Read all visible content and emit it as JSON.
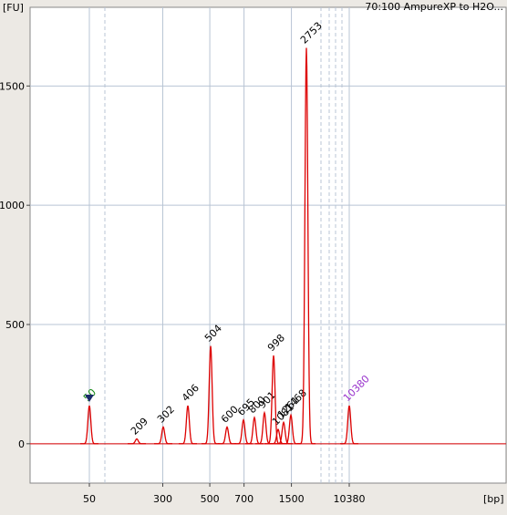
{
  "chart_data": {
    "type": "electropherogram",
    "title": "70:100 AmpureXP to H2O...",
    "y_label": "[FU]",
    "x_label": "[bp]",
    "x": [
      50,
      209,
      302,
      406,
      504,
      600,
      695,
      800,
      901,
      998,
      1081,
      1261,
      1468,
      2753,
      10380
    ],
    "values": [
      160,
      20,
      70,
      160,
      410,
      70,
      100,
      110,
      130,
      370,
      60,
      90,
      120,
      1660,
      160
    ],
    "label_colors": [
      "#118811",
      "#000000",
      "#000000",
      "#000000",
      "#000000",
      "#000000",
      "#000000",
      "#000000",
      "#000000",
      "#000000",
      "#000000",
      "#000000",
      "#000000",
      "#000000",
      "#9933cc"
    ],
    "color": "#dd0000",
    "ylim": [
      -165,
      1830
    ],
    "yticks": [
      0,
      500,
      1000,
      1500
    ],
    "xticks": [
      50,
      300,
      500,
      700,
      1500,
      10380
    ],
    "grid": true
  }
}
